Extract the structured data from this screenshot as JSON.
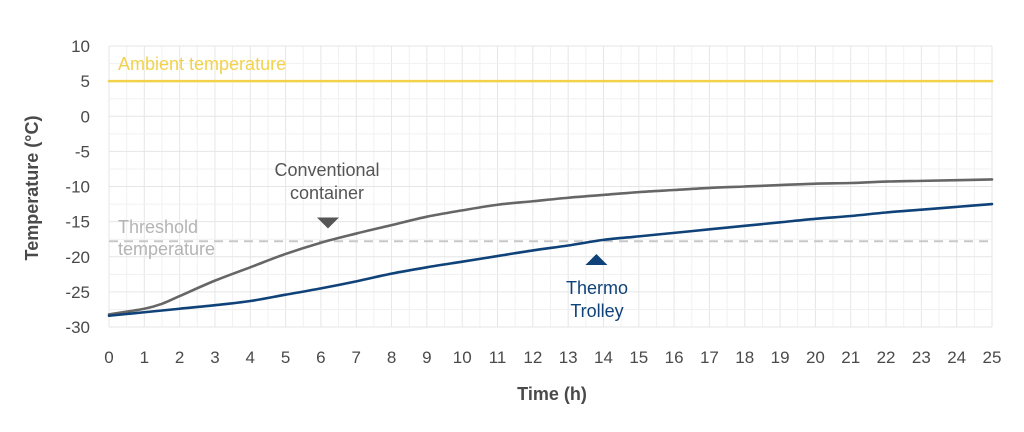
{
  "chart_data": {
    "type": "line",
    "xlabel": "Time (h)",
    "ylabel": "Temperature (°C)",
    "xlim": [
      0,
      25
    ],
    "ylim": [
      -30,
      10
    ],
    "xticks": [
      0,
      1,
      2,
      3,
      4,
      5,
      6,
      7,
      8,
      9,
      10,
      11,
      12,
      13,
      14,
      15,
      16,
      17,
      18,
      19,
      20,
      21,
      22,
      23,
      24,
      25
    ],
    "yticks": [
      10,
      5,
      0,
      -5,
      -10,
      -15,
      -20,
      -25,
      -30
    ],
    "grid": true,
    "series": [
      {
        "name": "Ambient temperature",
        "color": "#f2d24b",
        "style": "solid",
        "x": [
          0,
          25
        ],
        "y": [
          5,
          5
        ]
      },
      {
        "name": "Threshold temperature",
        "color": "#c8c8c8",
        "style": "dashed",
        "x": [
          0,
          25
        ],
        "y": [
          -17.8,
          -17.8
        ]
      },
      {
        "name": "Conventional container",
        "color": "#666666",
        "style": "solid",
        "x": [
          0,
          1,
          1.5,
          2,
          3,
          4,
          5,
          6,
          7,
          8,
          9,
          10,
          11,
          12,
          13,
          14,
          15,
          16,
          17,
          18,
          19,
          20,
          21,
          22,
          23,
          24,
          25
        ],
        "y": [
          -28.2,
          -27.4,
          -26.7,
          -25.6,
          -23.4,
          -21.5,
          -19.6,
          -18.0,
          -16.7,
          -15.5,
          -14.3,
          -13.4,
          -12.6,
          -12.1,
          -11.6,
          -11.2,
          -10.8,
          -10.5,
          -10.2,
          -10.0,
          -9.8,
          -9.6,
          -9.5,
          -9.3,
          -9.2,
          -9.1,
          -9.0
        ]
      },
      {
        "name": "Thermo Trolley",
        "color": "#0f4278",
        "style": "solid",
        "x": [
          0,
          1,
          2,
          3,
          4,
          5,
          6,
          7,
          8,
          9,
          10,
          11,
          12,
          13,
          14,
          15,
          16,
          17,
          18,
          19,
          20,
          21,
          22,
          23,
          24,
          25
        ],
        "y": [
          -28.4,
          -27.9,
          -27.4,
          -26.9,
          -26.3,
          -25.4,
          -24.5,
          -23.5,
          -22.4,
          -21.5,
          -20.7,
          -19.9,
          -19.1,
          -18.4,
          -17.6,
          -17.1,
          -16.6,
          -16.1,
          -15.6,
          -15.1,
          -14.6,
          -14.2,
          -13.7,
          -13.3,
          -12.9,
          -12.5
        ]
      }
    ],
    "annotations": [
      {
        "id": "ambient",
        "lines": [
          "Ambient temperature"
        ],
        "color": "#f2d24b"
      },
      {
        "id": "threshold",
        "lines": [
          "Threshold",
          "temperature"
        ],
        "color": "#b4b4b4"
      },
      {
        "id": "conventional",
        "lines": [
          "Conventional",
          "container"
        ],
        "color": "#555555",
        "marker": "down-triangle",
        "marker_at": [
          6.2,
          -15.2
        ]
      },
      {
        "id": "thermo",
        "lines": [
          "Thermo",
          "Trolley"
        ],
        "color": "#0f4278",
        "marker": "up-triangle",
        "marker_at": [
          13.8,
          -20.4
        ]
      }
    ]
  }
}
